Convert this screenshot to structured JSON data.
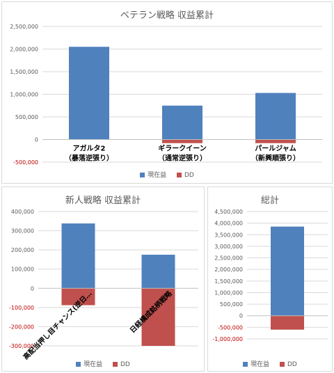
{
  "colors": {
    "current": "#4f81bd",
    "dd": "#c0504d",
    "gridline": "#d9d9d9",
    "axis": "#bfbfbf"
  },
  "chart_data": [
    {
      "type": "bar",
      "title": "ベテラン戦略 収益累計",
      "categories": [
        [
          "アガルタ2",
          "（暴落逆張り）"
        ],
        [
          "ギラークイーン",
          "（通常逆張り）"
        ],
        [
          "パールジャム",
          "（新興順張り）"
        ]
      ],
      "series": [
        {
          "name": "現在益",
          "values": [
            2050000,
            750000,
            1030000
          ]
        },
        {
          "name": "DD",
          "values": [
            0,
            -80000,
            -80000
          ]
        }
      ],
      "ylim": [
        -500000,
        2500000
      ],
      "yticks": [
        "-500,000",
        "0",
        "500,000",
        "1,000,000",
        "1,500,000",
        "2,000,000",
        "2,500,000"
      ],
      "legend": "bottom"
    },
    {
      "type": "bar",
      "title": "新人戦略 収益累計",
      "categories": [
        [
          "高配当押し目チャンス(逆日…"
        ],
        [
          "日経構成銘柄戦略"
        ]
      ],
      "series": [
        {
          "name": "現在益",
          "values": [
            338000,
            175000
          ]
        },
        {
          "name": "DD",
          "values": [
            -88000,
            -300000
          ]
        }
      ],
      "ylim": [
        -300000,
        400000
      ],
      "yticks": [
        "-300,000",
        "-200,000",
        "-100,000",
        "0",
        "100,000",
        "200,000",
        "300,000",
        "400,000"
      ],
      "legend": "bottom"
    },
    {
      "type": "bar",
      "title": "総計",
      "categories": [
        [
          ""
        ]
      ],
      "series": [
        {
          "name": "現在益",
          "values": [
            3850000
          ]
        },
        {
          "name": "DD",
          "values": [
            -600000
          ]
        }
      ],
      "ylim": [
        -1000000,
        4500000
      ],
      "yticks": [
        "-1,000,000",
        "-500,000",
        "0",
        "500,000",
        "1,000,000",
        "1,500,000",
        "2,000,000",
        "2,500,000",
        "3,000,000",
        "3,500,000",
        "4,000,000",
        "4,500,000"
      ],
      "legend": "bottom"
    }
  ]
}
